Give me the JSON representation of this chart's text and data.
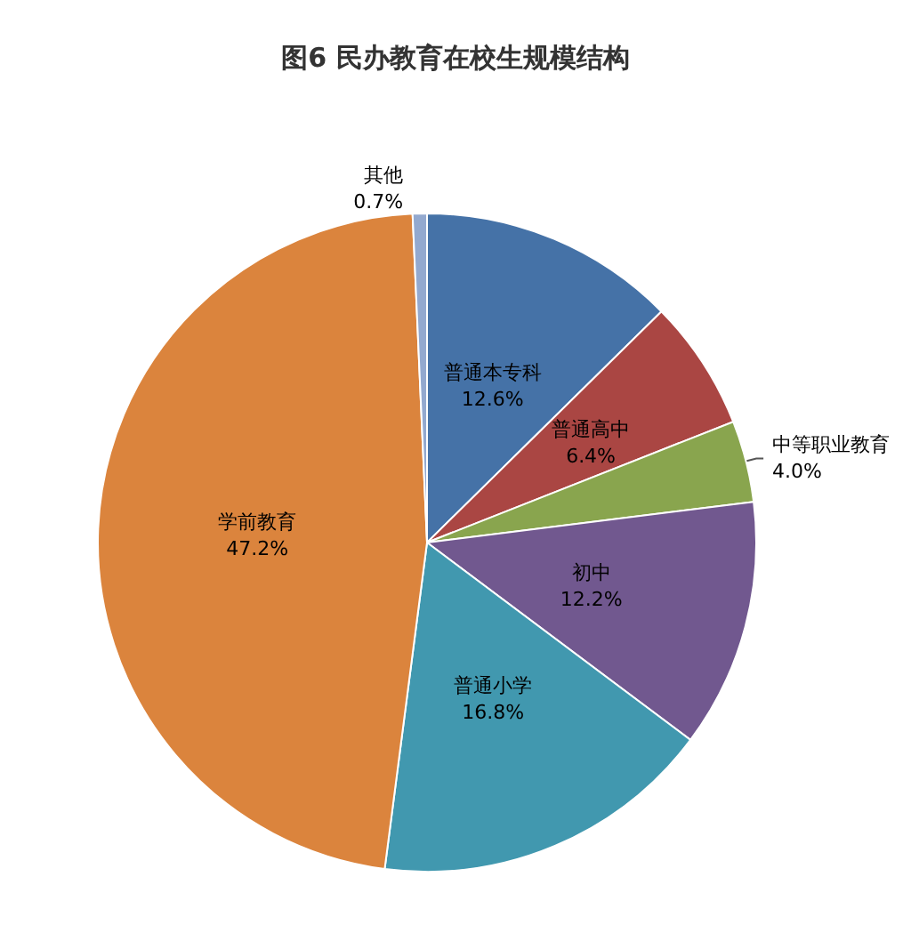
{
  "chart_data": {
    "type": "pie",
    "title": "图6 民办教育在校生规模结构",
    "categories": [
      "普通本专科",
      "普通高中",
      "中等职业教育",
      "初中",
      "普通小学",
      "学前教育",
      "其他"
    ],
    "values": [
      12.6,
      6.4,
      4.0,
      12.2,
      16.8,
      47.2,
      0.7
    ],
    "value_labels": [
      "12.6%",
      "6.4%",
      "4.0%",
      "12.2%",
      "16.8%",
      "47.2%",
      "0.7%"
    ],
    "colors": [
      "#4572a7",
      "#aa4643",
      "#89a54e",
      "#71588f",
      "#4198af",
      "#db843d",
      "#93a9cf"
    ]
  }
}
